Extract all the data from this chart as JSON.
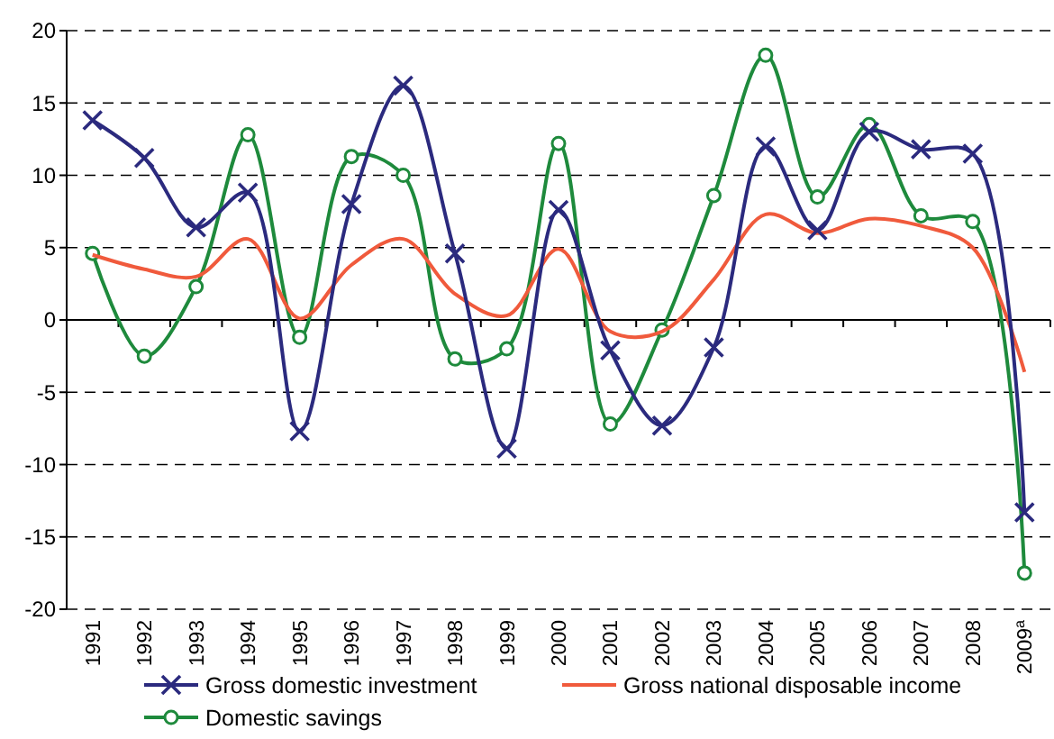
{
  "chart_data": {
    "type": "line",
    "categories": [
      "1991",
      "1992",
      "1993",
      "1994",
      "1995",
      "1996",
      "1997",
      "1998",
      "1999",
      "2000",
      "2001",
      "2002",
      "2003",
      "2004",
      "2005",
      "2006",
      "2007",
      "2008",
      "2009$^{a}$"
    ],
    "series": [
      {
        "name": "Gross domestic investment",
        "color": "#2b2a7e",
        "marker": "cross",
        "values": [
          13.8,
          11.2,
          6.4,
          8.8,
          -7.7,
          8.0,
          16.2,
          4.6,
          -8.9,
          7.6,
          -2.1,
          -7.3,
          -1.9,
          12.0,
          6.2,
          13.0,
          11.8,
          11.5,
          -13.3
        ]
      },
      {
        "name": "Gross national disposable income",
        "color": "#f05a3c",
        "marker": "none",
        "values": [
          4.5,
          3.5,
          3.0,
          5.6,
          0.1,
          3.8,
          5.6,
          1.8,
          0.3,
          4.9,
          -0.8,
          -0.8,
          2.8,
          7.3,
          6.0,
          7.0,
          6.5,
          5.0,
          -3.6
        ]
      },
      {
        "name": "Domestic savings",
        "color": "#1e8a3c",
        "marker": "circle",
        "values": [
          4.6,
          -2.5,
          2.3,
          12.8,
          -1.2,
          11.3,
          10.0,
          -2.7,
          -2.0,
          12.2,
          -7.2,
          -0.7,
          8.6,
          18.3,
          8.5,
          13.5,
          7.2,
          6.8,
          -17.5
        ]
      }
    ],
    "ylim": [
      -20,
      20
    ],
    "yticks": [
      -20,
      -15,
      -10,
      -5,
      0,
      5,
      10,
      15,
      20
    ],
    "grid": "y",
    "legend": "bottom",
    "line_style": "solid"
  }
}
